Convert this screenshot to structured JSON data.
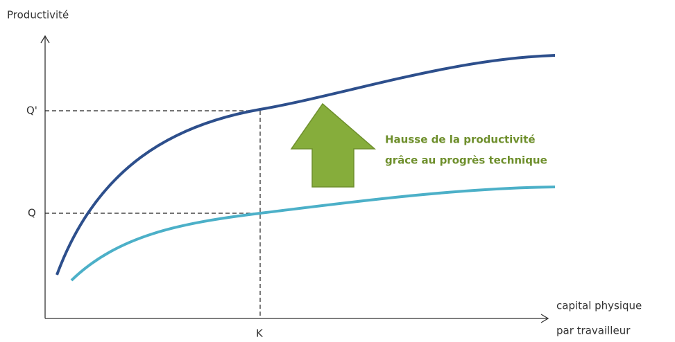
{
  "axis": {
    "y_label": "Productivité",
    "x_label_lines": [
      "capital physique",
      "par travailleur"
    ]
  },
  "levels": {
    "q_prime": "Q'",
    "q": "Q",
    "k": "K"
  },
  "annotation": {
    "lines": [
      "Hausse de la productivité",
      "grâce au progrès technique"
    ]
  }
}
